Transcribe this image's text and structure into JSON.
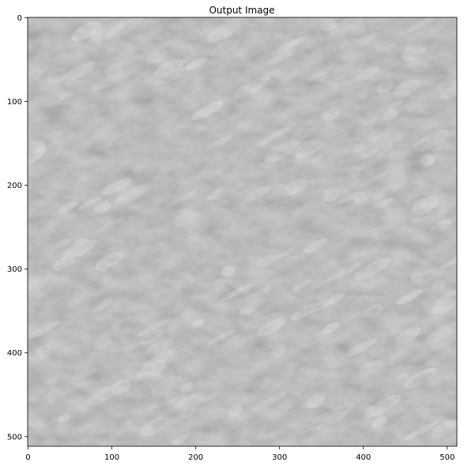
{
  "figure": {
    "title": "Output Image",
    "image_description": "grayscale textured surface (e.g. rough plaster/paper) with diagonal light and dark blotches",
    "colors": {
      "base": "#b3b3b1",
      "highlight": "#dededc",
      "shadow": "#9a9a97",
      "axis": "#000000",
      "background": "#ffffff"
    },
    "x_axis": {
      "range": [
        0,
        511
      ],
      "ticks": [
        {
          "value": 0,
          "label": "0"
        },
        {
          "value": 100,
          "label": "100"
        },
        {
          "value": 200,
          "label": "200"
        },
        {
          "value": 300,
          "label": "300"
        },
        {
          "value": 400,
          "label": "400"
        },
        {
          "value": 500,
          "label": "500"
        }
      ]
    },
    "y_axis": {
      "range": [
        0,
        511
      ],
      "inverted": true,
      "ticks": [
        {
          "value": 0,
          "label": "0"
        },
        {
          "value": 100,
          "label": "100"
        },
        {
          "value": 200,
          "label": "200"
        },
        {
          "value": 300,
          "label": "300"
        },
        {
          "value": 400,
          "label": "400"
        },
        {
          "value": 500,
          "label": "500"
        }
      ]
    }
  }
}
